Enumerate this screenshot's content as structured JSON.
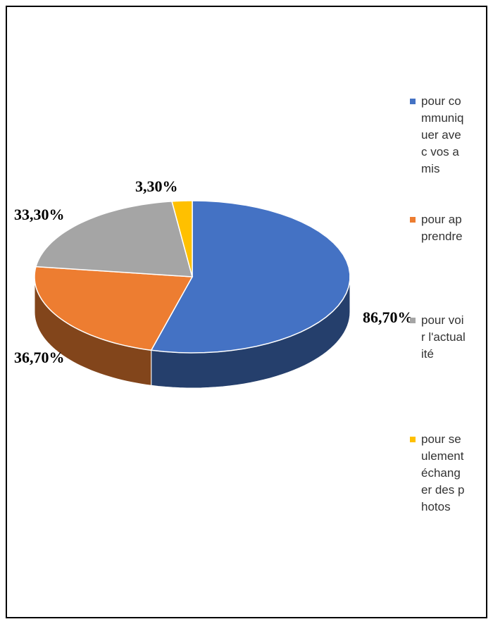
{
  "chart_data": {
    "type": "pie3d",
    "series": [
      {
        "name": "pour communiquer avec vos amis",
        "color": "#4472c4",
        "values": [
          86.7
        ],
        "value_labels": [
          "86,70%"
        ]
      },
      {
        "name": "pour apprendre",
        "color": "#ed7d31",
        "values": [
          36.7
        ],
        "value_labels": [
          "36,70%"
        ]
      },
      {
        "name": "pour voir l'actualité",
        "color": "#a5a5a5",
        "values": [
          33.3
        ],
        "value_labels": [
          "33,30%"
        ]
      },
      {
        "name": "pour seulement échanger des photos",
        "color": "#ffc000",
        "values": [
          3.3
        ],
        "value_labels": [
          "3,30%"
        ]
      }
    ],
    "legend": "right"
  }
}
